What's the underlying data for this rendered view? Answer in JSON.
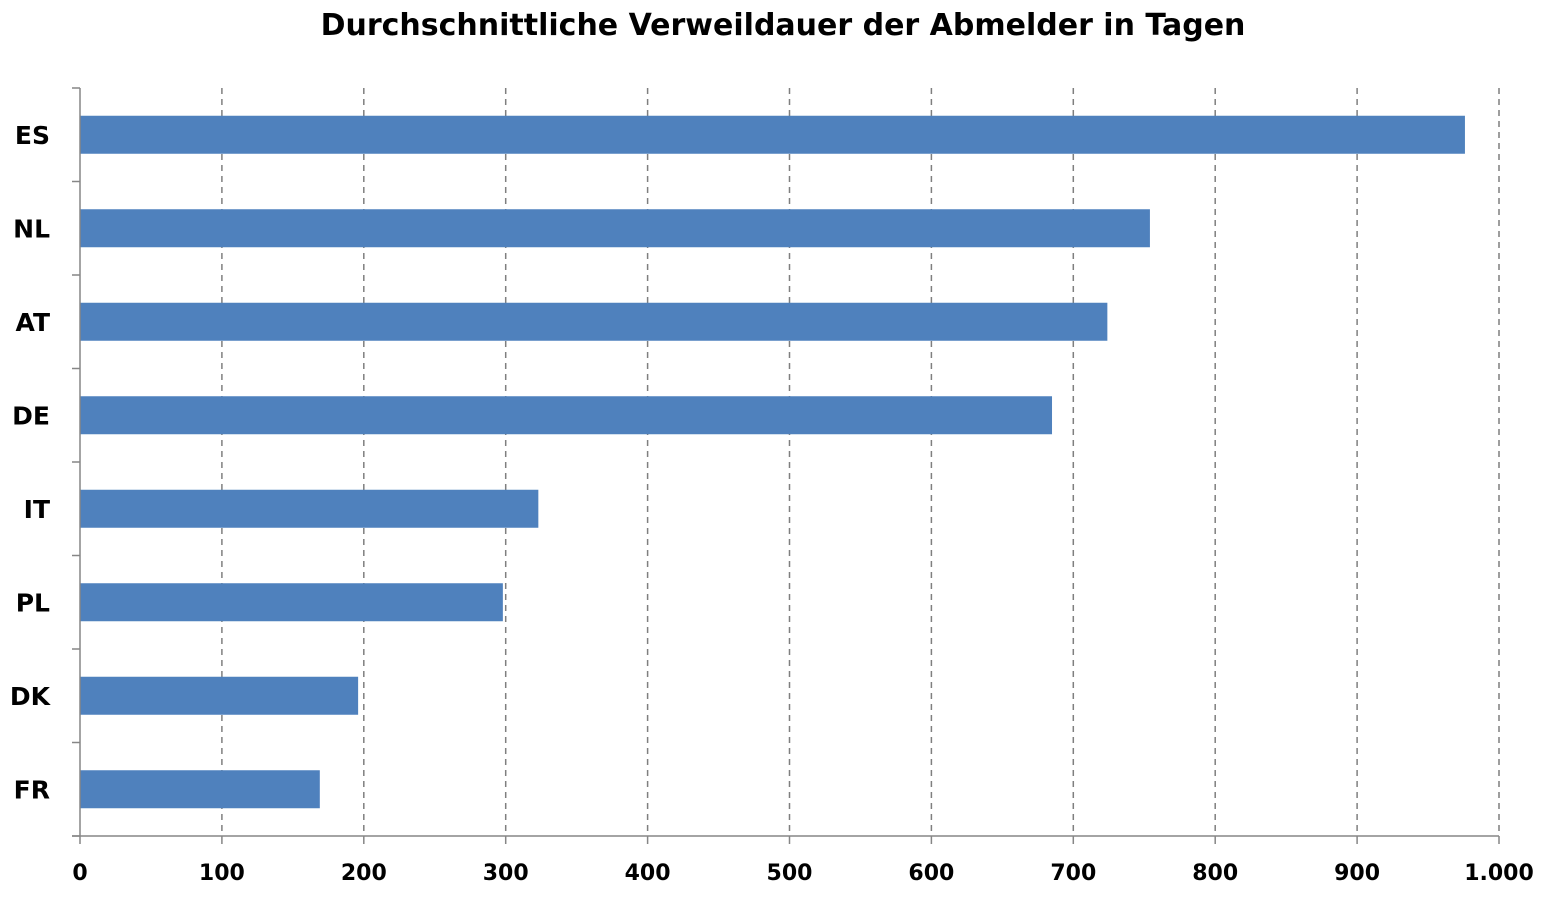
{
  "chart_data": {
    "type": "bar",
    "orientation": "horizontal",
    "title": "Durchschnittliche Verweildauer der Abmelder in Tagen",
    "xlabel": "",
    "ylabel": "",
    "categories": [
      "ES",
      "NL",
      "AT",
      "DE",
      "IT",
      "PL",
      "DK",
      "FR"
    ],
    "values": [
      976,
      754,
      724,
      685,
      323,
      298,
      196,
      169
    ],
    "xlim": [
      0,
      1000
    ],
    "xticks": [
      0,
      100,
      200,
      300,
      400,
      500,
      600,
      700,
      800,
      900,
      1000
    ],
    "xtick_labels": [
      "0",
      "100",
      "200",
      "300",
      "400",
      "500",
      "600",
      "700",
      "800",
      "900",
      "1.000"
    ],
    "grid": true,
    "legend": false,
    "bar_color": "#4F81BD"
  }
}
